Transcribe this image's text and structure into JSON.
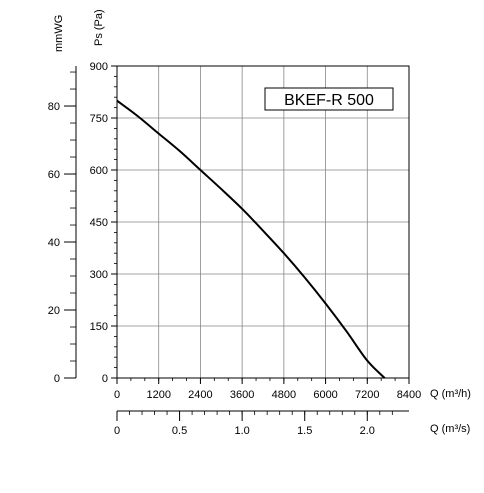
{
  "chart_data": {
    "type": "line",
    "title": "BKEF-R 500",
    "xlabel": "Q (m³/h)",
    "x2label": "Q (m³/s)",
    "ylabel": "Ps (Pa)",
    "y2label": "mmWG",
    "xlim": [
      0,
      8400
    ],
    "ylim": [
      0,
      900
    ],
    "x_ticks": [
      "0",
      "1200",
      "2400",
      "3600",
      "4800",
      "6000",
      "7200",
      "8400"
    ],
    "y_ticks": [
      "0",
      "150",
      "300",
      "450",
      "600",
      "750",
      "900"
    ],
    "x2_ticks": [
      "0",
      "0.5",
      "1.0",
      "1.5",
      "2.0"
    ],
    "y2_ticks": [
      "0",
      "20",
      "40",
      "60",
      "80"
    ],
    "grid": true,
    "series": [
      {
        "x": [
          0,
          600,
          1200,
          1800,
          2400,
          3000,
          3600,
          4200,
          4800,
          5400,
          6000,
          6600,
          7200,
          7700
        ],
        "y": [
          800,
          755,
          705,
          655,
          600,
          545,
          488,
          425,
          360,
          290,
          215,
          135,
          50,
          0
        ]
      }
    ]
  }
}
